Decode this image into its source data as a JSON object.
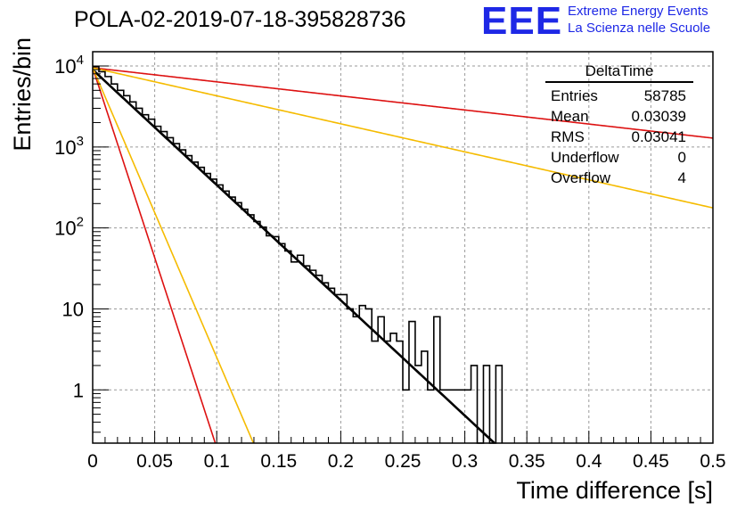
{
  "header": {
    "title": "POLA-02-2019-07-18-395828736",
    "logo_text": "EEE",
    "logo_line1": "Extreme Energy Events",
    "logo_line2": "La Scienza nelle Scuole",
    "logo_color": "#1e28e6"
  },
  "stats_box": {
    "title": "DeltaTime",
    "rows": [
      {
        "label": "Entries",
        "value": "58785"
      },
      {
        "label": "Mean",
        "value": "0.03039"
      },
      {
        "label": "RMS",
        "value": "0.03041"
      },
      {
        "label": "Underflow",
        "value": "0"
      },
      {
        "label": "Overflow",
        "value": "4"
      }
    ]
  },
  "chart_data": {
    "type": "histogram",
    "xlabel": "Time difference [s]",
    "ylabel": "Entries/bin",
    "xlim": [
      0,
      0.5
    ],
    "ylim": [
      0.22,
      15000
    ],
    "yscale": "log",
    "grid": true,
    "x_ticks": [
      "0",
      "0.05",
      "0.1",
      "0.15",
      "0.2",
      "0.25",
      "0.3",
      "0.35",
      "0.4",
      "0.45",
      "0.5"
    ],
    "y_ticks": [
      {
        "value": 1,
        "base": "1",
        "exp": ""
      },
      {
        "value": 10,
        "base": "10",
        "exp": ""
      },
      {
        "value": 100,
        "base": "10",
        "exp": "2"
      },
      {
        "value": 1000,
        "base": "10",
        "exp": "3"
      },
      {
        "value": 10000,
        "base": "10",
        "exp": "4"
      }
    ],
    "histogram": {
      "bin_width": 0.005,
      "bins": [
        {
          "x": 0.0,
          "y": 9800
        },
        {
          "x": 0.005,
          "y": 8500
        },
        {
          "x": 0.01,
          "y": 7400
        },
        {
          "x": 0.015,
          "y": 6000
        },
        {
          "x": 0.02,
          "y": 5000
        },
        {
          "x": 0.025,
          "y": 4300
        },
        {
          "x": 0.03,
          "y": 3600
        },
        {
          "x": 0.035,
          "y": 3000
        },
        {
          "x": 0.04,
          "y": 2500
        },
        {
          "x": 0.045,
          "y": 2200
        },
        {
          "x": 0.05,
          "y": 1800
        },
        {
          "x": 0.055,
          "y": 1550
        },
        {
          "x": 0.06,
          "y": 1300
        },
        {
          "x": 0.065,
          "y": 1100
        },
        {
          "x": 0.07,
          "y": 920
        },
        {
          "x": 0.075,
          "y": 780
        },
        {
          "x": 0.08,
          "y": 650
        },
        {
          "x": 0.085,
          "y": 560
        },
        {
          "x": 0.09,
          "y": 470
        },
        {
          "x": 0.095,
          "y": 400
        },
        {
          "x": 0.1,
          "y": 340
        },
        {
          "x": 0.105,
          "y": 285
        },
        {
          "x": 0.11,
          "y": 240
        },
        {
          "x": 0.115,
          "y": 205
        },
        {
          "x": 0.12,
          "y": 170
        },
        {
          "x": 0.125,
          "y": 145
        },
        {
          "x": 0.13,
          "y": 120
        },
        {
          "x": 0.135,
          "y": 102
        },
        {
          "x": 0.14,
          "y": 80
        },
        {
          "x": 0.145,
          "y": 78
        },
        {
          "x": 0.15,
          "y": 64
        },
        {
          "x": 0.155,
          "y": 52
        },
        {
          "x": 0.16,
          "y": 38
        },
        {
          "x": 0.165,
          "y": 46
        },
        {
          "x": 0.17,
          "y": 34
        },
        {
          "x": 0.175,
          "y": 30
        },
        {
          "x": 0.18,
          "y": 26
        },
        {
          "x": 0.185,
          "y": 21
        },
        {
          "x": 0.19,
          "y": 18
        },
        {
          "x": 0.195,
          "y": 15
        },
        {
          "x": 0.2,
          "y": 15
        },
        {
          "x": 0.205,
          "y": 10
        },
        {
          "x": 0.21,
          "y": 8
        },
        {
          "x": 0.215,
          "y": 11
        },
        {
          "x": 0.22,
          "y": 10
        },
        {
          "x": 0.225,
          "y": 4
        },
        {
          "x": 0.23,
          "y": 8
        },
        {
          "x": 0.235,
          "y": 4
        },
        {
          "x": 0.24,
          "y": 5
        },
        {
          "x": 0.245,
          "y": 4
        },
        {
          "x": 0.25,
          "y": 1
        },
        {
          "x": 0.255,
          "y": 7
        },
        {
          "x": 0.26,
          "y": 2
        },
        {
          "x": 0.265,
          "y": 3
        },
        {
          "x": 0.27,
          "y": 1
        },
        {
          "x": 0.275,
          "y": 8
        },
        {
          "x": 0.28,
          "y": 1
        },
        {
          "x": 0.285,
          "y": 1
        },
        {
          "x": 0.29,
          "y": 1
        },
        {
          "x": 0.295,
          "y": 1
        },
        {
          "x": 0.3,
          "y": 1
        },
        {
          "x": 0.305,
          "y": 2
        },
        {
          "x": 0.31,
          "y": 0
        },
        {
          "x": 0.315,
          "y": 2
        },
        {
          "x": 0.32,
          "y": 0
        },
        {
          "x": 0.325,
          "y": 2
        }
      ],
      "color": "#000000"
    },
    "curves": [
      {
        "color": "#000000",
        "width": 2.6,
        "y0": 9000,
        "tau": 0.0305
      },
      {
        "color": "#dd1111",
        "width": 1.6,
        "y0": 9500,
        "tau": 0.25
      },
      {
        "color": "#f5bb00",
        "width": 1.6,
        "y0": 9500,
        "tau": 0.1255
      },
      {
        "color": "#dd1111",
        "width": 1.6,
        "y0": 9500,
        "tau": 0.00926
      },
      {
        "color": "#f5bb00",
        "width": 1.6,
        "y0": 9500,
        "tau": 0.01214
      }
    ]
  }
}
